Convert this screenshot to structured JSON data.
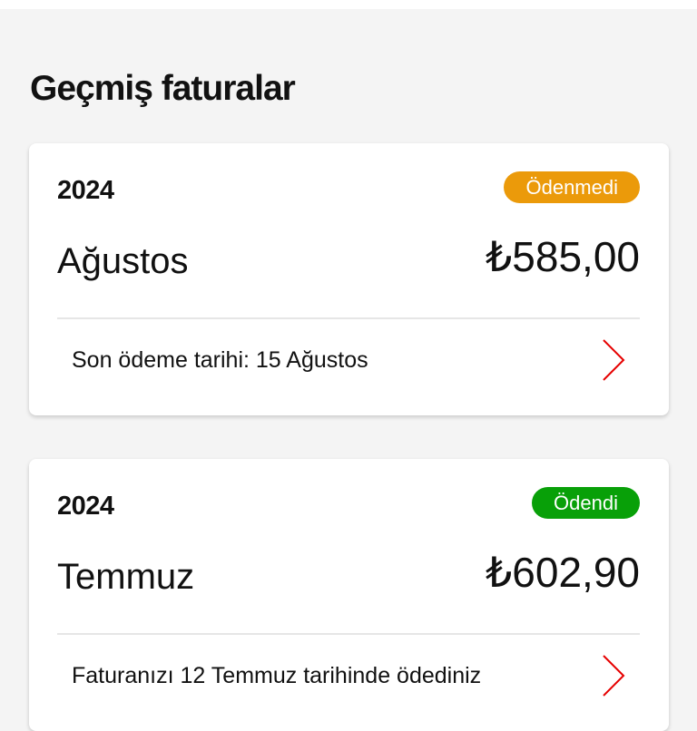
{
  "page": {
    "title": "Geçmiş faturalar"
  },
  "colors": {
    "unpaid": "#eb9a0a",
    "paid": "#08a008",
    "chevron": "#e60000"
  },
  "bills": [
    {
      "year": "2024",
      "status": "Ödenmedi",
      "status_type": "unpaid",
      "month": "Ağustos",
      "amount": "₺585,00",
      "note": "Son ödeme tarihi: 15 Ağustos"
    },
    {
      "year": "2024",
      "status": "Ödendi",
      "status_type": "paid",
      "month": "Temmuz",
      "amount": "₺602,90",
      "note": "Faturanızı 12 Temmuz tarihinde ödediniz"
    }
  ]
}
